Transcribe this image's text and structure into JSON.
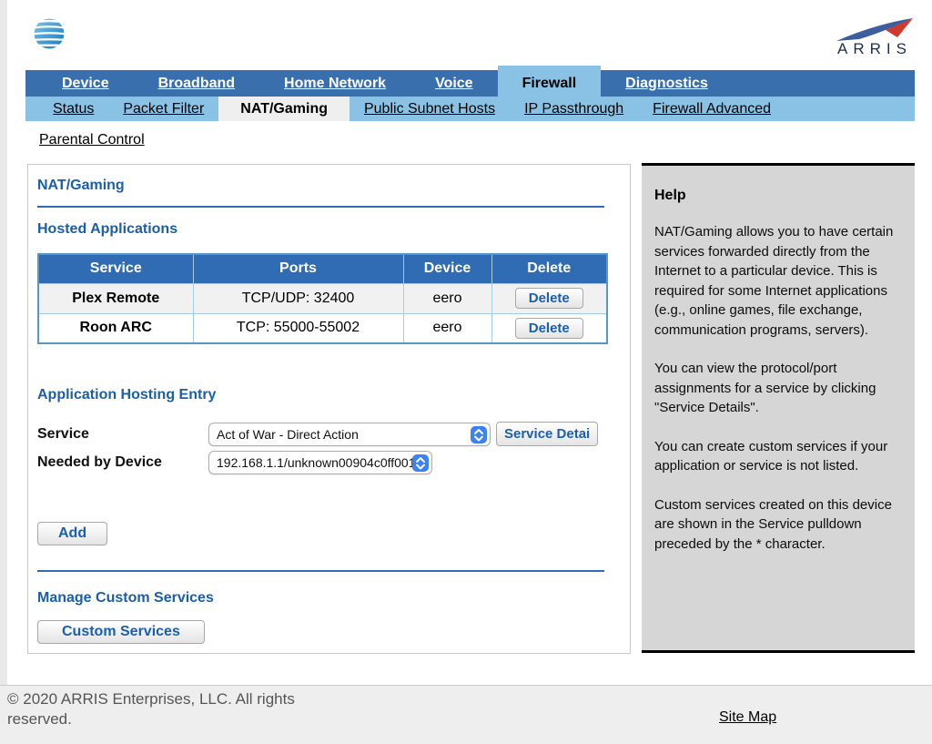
{
  "header": {
    "att_logo_name": "att-globe-icon",
    "arris_logo_text": "ARRIS"
  },
  "nav": {
    "items": [
      {
        "label": "Device",
        "active": false
      },
      {
        "label": "Broadband",
        "active": false
      },
      {
        "label": "Home Network",
        "active": false
      },
      {
        "label": "Voice",
        "active": false
      },
      {
        "label": "Firewall",
        "active": true
      },
      {
        "label": "Diagnostics",
        "active": false
      }
    ]
  },
  "subnav": {
    "items": [
      {
        "label": "Status",
        "active": false
      },
      {
        "label": "Packet Filter",
        "active": false
      },
      {
        "label": "NAT/Gaming",
        "active": true
      },
      {
        "label": "Public Subnet Hosts",
        "active": false
      },
      {
        "label": "IP Passthrough",
        "active": false
      },
      {
        "label": "Firewall Advanced",
        "active": false
      }
    ],
    "second_row_label": "Parental Control"
  },
  "main": {
    "title": "NAT/Gaming",
    "hosted_applications": {
      "heading": "Hosted Applications",
      "table": {
        "columns": [
          "Service",
          "Ports",
          "Device",
          "Delete"
        ],
        "rows": [
          {
            "service": "Plex Remote",
            "ports": "TCP/UDP: 32400",
            "device": "eero",
            "action": "Delete"
          },
          {
            "service": "Roon ARC",
            "ports": "TCP: 55000-55002",
            "device": "eero",
            "action": "Delete"
          }
        ]
      }
    },
    "application_hosting_entry": {
      "heading": "Application Hosting Entry",
      "service_label": "Service",
      "service_value": "Act of War - Direct Action",
      "service_details_button": "Service Detai",
      "needed_by_device_label": "Needed by Device",
      "needed_by_device_value": "192.168.1.1/unknown00904c0ff001",
      "add_button": "Add"
    },
    "manage_custom_services": {
      "heading": "Manage Custom Services",
      "custom_services_button": "Custom Services"
    }
  },
  "help": {
    "title": "Help",
    "paragraphs": [
      "NAT/Gaming allows you to have certain services forwarded directly from the Internet to a particular device. This is required for some Internet applications (e.g., online games, file exchange, communication programs, servers).",
      "You can view the protocol/port assignments for a service by clicking \"Service Details\".",
      "You can create custom services if your application or service is not listed.",
      "Custom services created on this device are shown in the Service pulldown preceded by the * character."
    ]
  },
  "footer": {
    "copyright": "© 2020 ARRIS Enterprises, LLC. All rights reserved.",
    "site_map_label": "Site Map"
  },
  "colors": {
    "nav_bar_blue": "#3a6fae",
    "subnav_bar_blue": "#8ac2e5",
    "active_subtab_bg": "#efefef",
    "heading_blue": "#1b5ea9",
    "table_header_blue": "#2f6cb4",
    "table_border_blue": "#5598c9",
    "button_text_blue": "#1b5fae",
    "stepper_blue": "#3b82f7",
    "help_panel_bg": "#d6d6d6",
    "footer_bg": "#eeeeee"
  },
  "icons": {
    "att_globe": "att-globe-icon",
    "arris_swoosh": "arris-swoosh-icon",
    "select_stepper": "select-stepper-icon"
  }
}
